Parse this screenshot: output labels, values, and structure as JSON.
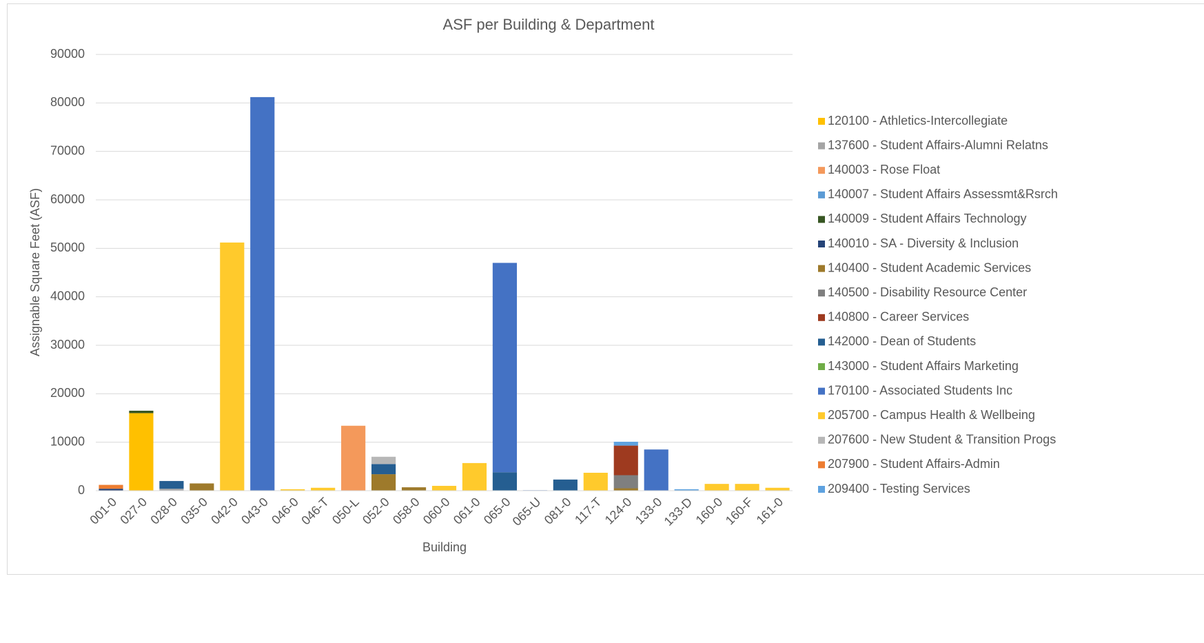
{
  "chart_data": {
    "type": "stacked_bar",
    "title": "ASF per Building & Department",
    "x_label": "Building",
    "y_label": "Assignable Square Feet (ASF)",
    "categories": [
      "001-0",
      "027-0",
      "028-0",
      "035-0",
      "042-0",
      "043-0",
      "046-0",
      "046-T",
      "050-L",
      "052-0",
      "058-0",
      "060-0",
      "061-0",
      "065-0",
      "065-U",
      "081-0",
      "117-T",
      "124-0",
      "133-0",
      "133-D",
      "160-0",
      "160-F",
      "161-0"
    ],
    "ylim": [
      0,
      90000
    ],
    "yticks": [
      0,
      10000,
      20000,
      30000,
      40000,
      50000,
      60000,
      70000,
      80000,
      90000
    ],
    "grid": true,
    "legend": "right",
    "series": [
      {
        "name": "120100 - Athletics-Intercollegiate",
        "color": "#ffc000",
        "values": [
          null,
          16000,
          null,
          null,
          null,
          null,
          null,
          null,
          null,
          null,
          null,
          null,
          null,
          null,
          null,
          null,
          null,
          null,
          null,
          null,
          null,
          null,
          null
        ]
      },
      {
        "name": "137600 - Student Affairs-Alumni Relatns",
        "color": "#a5a5a5",
        "values": [
          null,
          null,
          400,
          null,
          null,
          null,
          null,
          null,
          null,
          null,
          null,
          null,
          null,
          null,
          null,
          null,
          null,
          null,
          null,
          null,
          null,
          null,
          null
        ]
      },
      {
        "name": "140003 - Rose Float",
        "color": "#f4995b",
        "values": [
          null,
          null,
          null,
          null,
          null,
          null,
          null,
          null,
          13400,
          null,
          null,
          null,
          null,
          null,
          null,
          null,
          null,
          null,
          null,
          null,
          null,
          null,
          null
        ]
      },
      {
        "name": "140007 - Student Affairs Assessmt&Rsrch",
        "color": "#5b9bd5",
        "values": [
          null,
          null,
          null,
          null,
          null,
          null,
          null,
          null,
          null,
          null,
          null,
          null,
          null,
          null,
          null,
          null,
          null,
          null,
          null,
          null,
          null,
          null,
          null
        ]
      },
      {
        "name": "140009 - Student Affairs Technology",
        "color": "#375623",
        "values": [
          null,
          500,
          null,
          null,
          null,
          null,
          null,
          null,
          null,
          null,
          null,
          null,
          null,
          null,
          null,
          null,
          null,
          null,
          null,
          null,
          null,
          null,
          null
        ]
      },
      {
        "name": "140010 - SA - Diversity & Inclusion",
        "color": "#264478",
        "values": [
          400,
          null,
          null,
          null,
          null,
          null,
          null,
          null,
          null,
          null,
          null,
          null,
          null,
          null,
          null,
          null,
          null,
          null,
          null,
          null,
          null,
          null,
          null
        ]
      },
      {
        "name": "140400 - Student Academic Services",
        "color": "#9e7a2b",
        "values": [
          null,
          null,
          null,
          1500,
          null,
          null,
          null,
          null,
          null,
          3400,
          700,
          null,
          null,
          null,
          null,
          null,
          null,
          500,
          null,
          null,
          null,
          null,
          null
        ]
      },
      {
        "name": "140500 - Disability Resource Center",
        "color": "#7f7f7f",
        "values": [
          null,
          null,
          null,
          null,
          null,
          null,
          null,
          null,
          null,
          null,
          null,
          null,
          null,
          null,
          null,
          null,
          null,
          2700,
          null,
          null,
          null,
          null,
          null
        ]
      },
      {
        "name": "140800 - Career Services",
        "color": "#9e3a1f",
        "values": [
          null,
          null,
          null,
          null,
          null,
          null,
          null,
          null,
          null,
          null,
          null,
          null,
          null,
          null,
          null,
          null,
          null,
          6100,
          null,
          null,
          null,
          null,
          null
        ]
      },
      {
        "name": "142000 - Dean of Students",
        "color": "#255e91",
        "values": [
          null,
          null,
          1600,
          null,
          null,
          null,
          null,
          null,
          null,
          2100,
          null,
          null,
          null,
          3800,
          null,
          2300,
          null,
          null,
          null,
          null,
          null,
          null,
          null
        ]
      },
      {
        "name": "143000 - Student Affairs Marketing",
        "color": "#70ad47",
        "values": [
          null,
          null,
          null,
          null,
          null,
          null,
          null,
          null,
          null,
          null,
          null,
          null,
          null,
          null,
          null,
          null,
          null,
          null,
          null,
          null,
          null,
          null,
          null
        ]
      },
      {
        "name": "170100 - Associated Students Inc",
        "color": "#4472c4",
        "values": [
          null,
          null,
          null,
          null,
          null,
          81200,
          null,
          null,
          null,
          null,
          null,
          null,
          null,
          43200,
          100,
          null,
          null,
          null,
          8500,
          null,
          null,
          null,
          null
        ]
      },
      {
        "name": "205700 - Campus Health & Wellbeing",
        "color": "#ffca2c",
        "values": [
          null,
          null,
          null,
          null,
          51200,
          null,
          300,
          600,
          null,
          null,
          null,
          1000,
          5700,
          null,
          null,
          null,
          3700,
          null,
          null,
          null,
          1400,
          1400,
          600
        ]
      },
      {
        "name": "207600 - New Student & Transition Progs",
        "color": "#b7b7b7",
        "values": [
          null,
          null,
          null,
          null,
          null,
          null,
          null,
          null,
          null,
          1500,
          null,
          null,
          null,
          null,
          null,
          null,
          null,
          null,
          null,
          null,
          null,
          null,
          null
        ]
      },
      {
        "name": "207900 - Student Affairs-Admin",
        "color": "#ed7d31",
        "values": [
          800,
          null,
          null,
          null,
          null,
          null,
          null,
          null,
          null,
          null,
          null,
          null,
          null,
          null,
          null,
          null,
          null,
          null,
          null,
          null,
          null,
          null,
          null
        ]
      },
      {
        "name": "209400 - Testing Services",
        "color": "#5ea2e0",
        "values": [
          null,
          null,
          null,
          null,
          null,
          null,
          null,
          null,
          null,
          null,
          null,
          null,
          null,
          null,
          null,
          null,
          null,
          800,
          null,
          300,
          null,
          null,
          null
        ]
      }
    ]
  }
}
